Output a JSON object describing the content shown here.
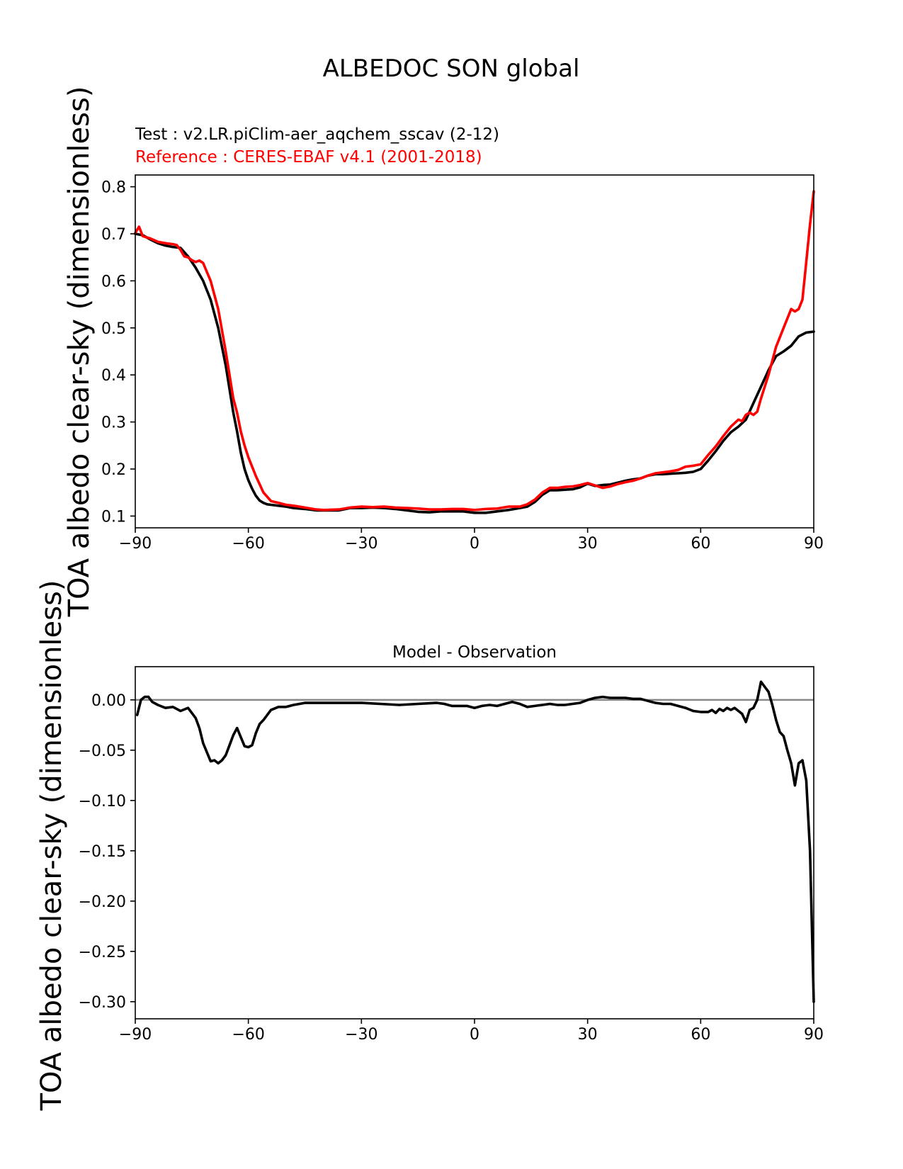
{
  "figure": {
    "title": "ALBEDOC SON global",
    "test_label": "Test : v2.LR.piClim-aer_aqchem_sscav (2-12)",
    "reference_label": "Reference : CERES-EBAF v4.1 (2001-2018)"
  },
  "colors": {
    "test": "#000000",
    "reference": "#ff0000",
    "zero_line": "#888888",
    "axes": "#000000"
  },
  "chart_data": [
    {
      "type": "line",
      "title": "",
      "xlabel": "",
      "ylabel": "TOA albedo clear-sky (dimensionless)",
      "xlim": [
        -90,
        90
      ],
      "ylim": [
        0.075,
        0.825
      ],
      "xticks": [
        -90,
        -60,
        -30,
        0,
        30,
        60,
        90
      ],
      "xtick_labels": [
        "−90",
        "−60",
        "−30",
        "0",
        "30",
        "60",
        "90"
      ],
      "yticks": [
        0.1,
        0.2,
        0.3,
        0.4,
        0.5,
        0.6,
        0.7,
        0.8
      ],
      "ytick_labels": [
        "0.1",
        "0.2",
        "0.3",
        "0.4",
        "0.5",
        "0.6",
        "0.7",
        "0.8"
      ],
      "series": [
        {
          "name": "Test : v2.LR.piClim-aer_aqchem_sscav (2-12)",
          "color": "#000000",
          "x": [
            -90,
            -88,
            -86,
            -84,
            -82,
            -80,
            -78,
            -76,
            -74,
            -72,
            -70,
            -68,
            -66,
            -64,
            -63,
            -62,
            -61,
            -60,
            -59,
            -58,
            -57,
            -56,
            -55,
            -54,
            -52,
            -50,
            -48,
            -45,
            -42,
            -40,
            -36,
            -33,
            -30,
            -27,
            -24,
            -21,
            -18,
            -15,
            -12,
            -9,
            -6,
            -3,
            0,
            3,
            6,
            9,
            12,
            14,
            16,
            18,
            20,
            22,
            24,
            26,
            28,
            30,
            32,
            34,
            36,
            38,
            40,
            42,
            44,
            46,
            48,
            50,
            52,
            54,
            56,
            58,
            60,
            62,
            64,
            66,
            68,
            70,
            72,
            74,
            76,
            78,
            80,
            82,
            84,
            86,
            88,
            90
          ],
          "values": [
            0.7,
            0.697,
            0.688,
            0.68,
            0.675,
            0.672,
            0.67,
            0.652,
            0.628,
            0.6,
            0.56,
            0.5,
            0.42,
            0.32,
            0.28,
            0.235,
            0.2,
            0.176,
            0.158,
            0.143,
            0.133,
            0.128,
            0.125,
            0.124,
            0.122,
            0.12,
            0.117,
            0.115,
            0.112,
            0.112,
            0.112,
            0.117,
            0.117,
            0.118,
            0.117,
            0.115,
            0.112,
            0.109,
            0.108,
            0.11,
            0.11,
            0.11,
            0.107,
            0.107,
            0.11,
            0.113,
            0.117,
            0.12,
            0.13,
            0.145,
            0.155,
            0.155,
            0.156,
            0.157,
            0.161,
            0.169,
            0.164,
            0.166,
            0.167,
            0.171,
            0.175,
            0.178,
            0.18,
            0.186,
            0.189,
            0.189,
            0.19,
            0.191,
            0.192,
            0.194,
            0.2,
            0.218,
            0.238,
            0.26,
            0.278,
            0.29,
            0.305,
            0.34,
            0.375,
            0.41,
            0.44,
            0.45,
            0.462,
            0.482,
            0.49,
            0.492
          ]
        },
        {
          "name": "Reference : CERES-EBAF v4.1 (2001-2018)",
          "color": "#ff0000",
          "x": [
            -90,
            -89,
            -88,
            -86,
            -84,
            -82,
            -80,
            -79,
            -78,
            -77,
            -76,
            -75,
            -74,
            -73,
            -72,
            -70,
            -68,
            -66,
            -64,
            -63,
            -62,
            -61,
            -60,
            -58,
            -56,
            -54,
            -52,
            -50,
            -48,
            -45,
            -42,
            -40,
            -36,
            -33,
            -30,
            -27,
            -24,
            -21,
            -18,
            -15,
            -12,
            -9,
            -6,
            -3,
            0,
            3,
            6,
            9,
            12,
            14,
            16,
            18,
            20,
            22,
            24,
            26,
            28,
            30,
            32,
            34,
            36,
            38,
            40,
            42,
            44,
            46,
            48,
            50,
            52,
            54,
            56,
            58,
            60,
            62,
            64,
            66,
            68,
            70,
            71,
            72,
            73,
            74,
            75,
            76,
            78,
            80,
            82,
            84,
            85,
            86,
            87,
            88,
            89,
            90
          ],
          "values": [
            0.702,
            0.715,
            0.695,
            0.69,
            0.683,
            0.68,
            0.678,
            0.676,
            0.666,
            0.652,
            0.65,
            0.644,
            0.64,
            0.643,
            0.638,
            0.6,
            0.54,
            0.45,
            0.35,
            0.32,
            0.28,
            0.25,
            0.225,
            0.185,
            0.15,
            0.132,
            0.128,
            0.124,
            0.122,
            0.118,
            0.114,
            0.113,
            0.114,
            0.118,
            0.12,
            0.119,
            0.12,
            0.118,
            0.117,
            0.116,
            0.114,
            0.114,
            0.115,
            0.115,
            0.113,
            0.115,
            0.116,
            0.12,
            0.12,
            0.125,
            0.135,
            0.15,
            0.16,
            0.16,
            0.162,
            0.163,
            0.166,
            0.17,
            0.165,
            0.16,
            0.163,
            0.168,
            0.172,
            0.175,
            0.18,
            0.186,
            0.191,
            0.193,
            0.195,
            0.198,
            0.205,
            0.207,
            0.21,
            0.23,
            0.248,
            0.27,
            0.29,
            0.305,
            0.302,
            0.315,
            0.32,
            0.315,
            0.322,
            0.35,
            0.4,
            0.46,
            0.5,
            0.54,
            0.535,
            0.54,
            0.56,
            0.64,
            0.72,
            0.79
          ]
        }
      ]
    },
    {
      "type": "line",
      "title": "Model - Observation",
      "xlabel": "",
      "ylabel": "TOA albedo clear-sky (dimensionless)",
      "xlim": [
        -90,
        90
      ],
      "ylim": [
        -0.317,
        0.033
      ],
      "xticks": [
        -90,
        -60,
        -30,
        0,
        30,
        60,
        90
      ],
      "xtick_labels": [
        "−90",
        "−60",
        "−30",
        "0",
        "30",
        "60",
        "90"
      ],
      "yticks": [
        0.0,
        -0.05,
        -0.1,
        -0.15,
        -0.2,
        -0.25,
        -0.3
      ],
      "ytick_labels": [
        "0.00",
        "−0.05",
        "−0.10",
        "−0.15",
        "−0.20",
        "−0.25",
        "−0.30"
      ],
      "reference_line": 0.0,
      "series": [
        {
          "name": "Model - Observation",
          "color": "#000000",
          "x": [
            -89.5,
            -88.5,
            -87.5,
            -86.5,
            -85.5,
            -84,
            -82,
            -80,
            -78,
            -76,
            -74,
            -73,
            -72,
            -71,
            -70,
            -69,
            -68,
            -67,
            -66,
            -65,
            -64,
            -63,
            -62,
            -61,
            -60,
            -59,
            -58,
            -57,
            -56,
            -55,
            -54,
            -52,
            -50,
            -48,
            -45,
            -40,
            -35,
            -30,
            -25,
            -20,
            -15,
            -10,
            -8,
            -6,
            -4,
            -2,
            0,
            2,
            4,
            6,
            8,
            10,
            12,
            14,
            16,
            18,
            20,
            22,
            24,
            26,
            28,
            30,
            32,
            34,
            36,
            38,
            40,
            42,
            44,
            46,
            48,
            50,
            52,
            54,
            56,
            58,
            60,
            62,
            63,
            64,
            65,
            66,
            67,
            68,
            69,
            70,
            71,
            72,
            73,
            74,
            75,
            76,
            77,
            78,
            79,
            80,
            81,
            82,
            83,
            84,
            85,
            86,
            87,
            88,
            89,
            90
          ],
          "values": [
            -0.015,
            0.0,
            0.003,
            0.003,
            -0.002,
            -0.005,
            -0.008,
            -0.007,
            -0.011,
            -0.008,
            -0.018,
            -0.028,
            -0.043,
            -0.052,
            -0.061,
            -0.06,
            -0.063,
            -0.06,
            -0.055,
            -0.045,
            -0.035,
            -0.028,
            -0.037,
            -0.046,
            -0.047,
            -0.045,
            -0.033,
            -0.024,
            -0.02,
            -0.015,
            -0.01,
            -0.007,
            -0.007,
            -0.005,
            -0.003,
            -0.003,
            -0.003,
            -0.003,
            -0.004,
            -0.005,
            -0.004,
            -0.003,
            -0.004,
            -0.006,
            -0.006,
            -0.006,
            -0.008,
            -0.006,
            -0.005,
            -0.006,
            -0.004,
            -0.002,
            -0.004,
            -0.007,
            -0.006,
            -0.005,
            -0.004,
            -0.005,
            -0.005,
            -0.004,
            -0.003,
            0.0,
            0.002,
            0.003,
            0.002,
            0.002,
            0.002,
            0.001,
            0.001,
            -0.001,
            -0.003,
            -0.004,
            -0.004,
            -0.006,
            -0.008,
            -0.011,
            -0.012,
            -0.012,
            -0.01,
            -0.013,
            -0.009,
            -0.011,
            -0.008,
            -0.01,
            -0.008,
            -0.011,
            -0.014,
            -0.022,
            -0.01,
            -0.008,
            0.0,
            0.018,
            0.013,
            0.008,
            -0.005,
            -0.02,
            -0.032,
            -0.036,
            -0.05,
            -0.063,
            -0.085,
            -0.063,
            -0.06,
            -0.08,
            -0.15,
            -0.3
          ]
        }
      ]
    }
  ]
}
